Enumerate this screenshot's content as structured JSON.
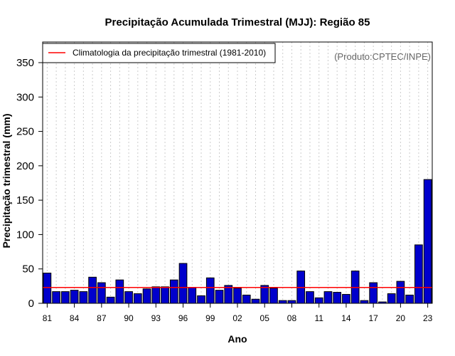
{
  "chart_data": {
    "type": "bar",
    "title": "Precipitação Acumulada Trimestral (MJJ): Região 85",
    "xlabel": "Ano",
    "ylabel": "Precipitação trimestral (mm)",
    "ylim": [
      0,
      380
    ],
    "yticks": [
      0,
      50,
      100,
      150,
      200,
      250,
      300,
      350
    ],
    "categories": [
      "81",
      "82",
      "83",
      "84",
      "85",
      "86",
      "87",
      "88",
      "89",
      "90",
      "91",
      "92",
      "93",
      "94",
      "95",
      "96",
      "97",
      "98",
      "99",
      "00",
      "01",
      "02",
      "03",
      "04",
      "05",
      "06",
      "07",
      "08",
      "09",
      "10",
      "11",
      "12",
      "13",
      "14",
      "15",
      "16",
      "17",
      "18",
      "19",
      "20",
      "21",
      "22",
      "23"
    ],
    "xtick_labels": [
      "81",
      "84",
      "87",
      "90",
      "93",
      "96",
      "99",
      "02",
      "05",
      "08",
      "11",
      "14",
      "17",
      "20",
      "23"
    ],
    "values": [
      44,
      17,
      17,
      19,
      17,
      38,
      30,
      9,
      34,
      17,
      14,
      21,
      24,
      24,
      34,
      58,
      23,
      11,
      37,
      19,
      26,
      22,
      12,
      6,
      26,
      22,
      4,
      4,
      47,
      17,
      8,
      17,
      16,
      13,
      47,
      4,
      30,
      2,
      14,
      32,
      12,
      85,
      180
    ],
    "bar_color": "#0000cc",
    "climatology": {
      "label": "Climatologia da precipitação trimestral (1981-2010)",
      "value": 23,
      "color": "#ff0000"
    },
    "legend_position": "top-left",
    "grid": true,
    "credit": "(Produto:CPTEC/INPE)"
  }
}
